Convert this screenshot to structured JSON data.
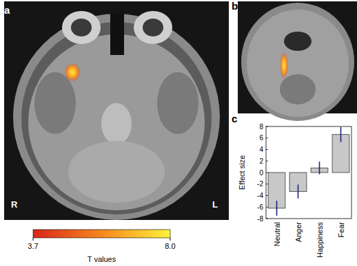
{
  "panel_labels": [
    "a",
    "b",
    "c"
  ],
  "orientation_labels": {
    "right": "R",
    "left": "L"
  },
  "colorbar": {
    "title": "T values",
    "range": [
      3.7,
      8
    ],
    "ticks": [
      3.7,
      {
        "value": 8,
        "label": "8.0"
      }
    ]
  },
  "chart_data": {
    "type": "bar",
    "ylabel": "Effect size",
    "categories": [
      "Neutral",
      "Anger",
      "Happiness",
      "Fear"
    ],
    "values": [
      -6.2,
      -3.3,
      0.8,
      6.6
    ],
    "errors": [
      1.3,
      1.2,
      1.1,
      1.3
    ],
    "color": "#c8c8c8",
    "ylim": [
      -8,
      8
    ],
    "yticks": [
      -8,
      -6,
      -4,
      -2,
      0,
      2,
      4,
      6,
      8
    ]
  }
}
